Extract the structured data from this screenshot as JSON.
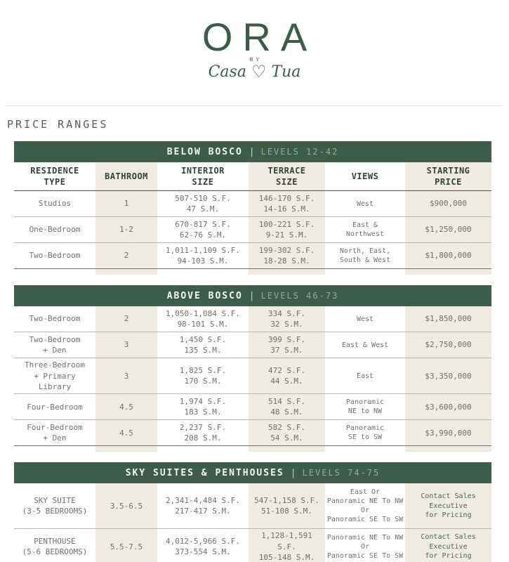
{
  "logo": {
    "name": "ORA",
    "by": "BY",
    "script_left": "Casa",
    "heart_icon": "♡",
    "script_right": "Tua"
  },
  "page_title": "PRICE RANGES",
  "colors": {
    "brand_green": "#3e5c4b",
    "shade_beige": "#efeae2",
    "body_text": "#757069",
    "header_text": "#33433b",
    "contact_green": "#4c6c59"
  },
  "columns": [
    "RESIDENCE\nTYPE",
    "BATHROOM",
    "INTERIOR\nSIZE",
    "TERRACE\nSIZE",
    "VIEWS",
    "STARTING\nPRICE"
  ],
  "sections": [
    {
      "title": "BELOW BOSCO",
      "separator": "|",
      "subtitle": "LEVELS 12-42",
      "rows": [
        [
          "Studios",
          "1",
          "507-510 S.F.\n47 S.M.",
          "146-170 S.F.\n14-16 S.M.",
          "West",
          "$900,000"
        ],
        [
          "One-Bedroom",
          "1-2",
          "670-817 S.F.\n62-76 S.M.",
          "100-221 S.F.\n9-21 S.M.",
          "East &\nNorthwest",
          "$1,250,000"
        ],
        [
          "Two-Bedroom",
          "2",
          "1,011-1,109 S.F.\n94-103 S.M.",
          "199-302 S.F.\n18-28 S.M.",
          "North, East,\nSouth & West",
          "$1,800,000"
        ]
      ]
    },
    {
      "title": "ABOVE BOSCO",
      "separator": "|",
      "subtitle": "LEVELS 46-73",
      "rows": [
        [
          "Two-Bedroom",
          "2",
          "1,050-1,084 S.F.\n98-101 S.M.",
          "334 S.F.\n32 S.M.",
          "West",
          "$1,850,000"
        ],
        [
          "Two-Bedroom\n+ Den",
          "3",
          "1,450 S.F.\n135 S.M.",
          "399 S.F.\n37 S.M.",
          "East & West",
          "$2,750,000"
        ],
        [
          "Three-Bedroom\n+ Primary Library",
          "3",
          "1,825 S.F.\n170 S.M.",
          "472 S.F.\n44 S.M.",
          "East",
          "$3,350,000"
        ],
        [
          "Four-Bedroom",
          "4.5",
          "1,974 S.F.\n183 S.M.",
          "514 S.F.\n48 S.M.",
          "Panoramic\nNE to NW",
          "$3,600,000"
        ],
        [
          "Four-Bedroom\n+ Den",
          "4.5",
          "2,237 S.F.\n208 S.M.",
          "582 S.F.\n54 S.M.",
          "Panoramic\nSE to SW",
          "$3,990,000"
        ]
      ]
    },
    {
      "title": "SKY SUITES & PENTHOUSES",
      "separator": "|",
      "subtitle": "LEVELS 74-75",
      "rows": [
        [
          "SKY SUITE\n(3-5 BEDROOMS)",
          "3.5-6.5",
          "2,341-4,484 S.F.\n217-417 S.M.",
          "547-1,158 S.F.\n51-108 S.M.",
          "East Or\nPanoramic NE To NW\nOr\nPanoramic SE To SW",
          "Contact Sales\nExecutive\nfor Pricing"
        ],
        [
          "PENTHOUSE\n(5-6 BEDROOMS)",
          "5.5-7.5",
          "4,012-5,966 S.F.\n373-554 S.M.",
          "1,128-1,591 S.F.\n105-148 S.M.",
          "Panoramic NE To NW\nOr\nPanoramic SE To SW",
          "Contact Sales\nExecutive\nfor Pricing"
        ]
      ]
    }
  ]
}
